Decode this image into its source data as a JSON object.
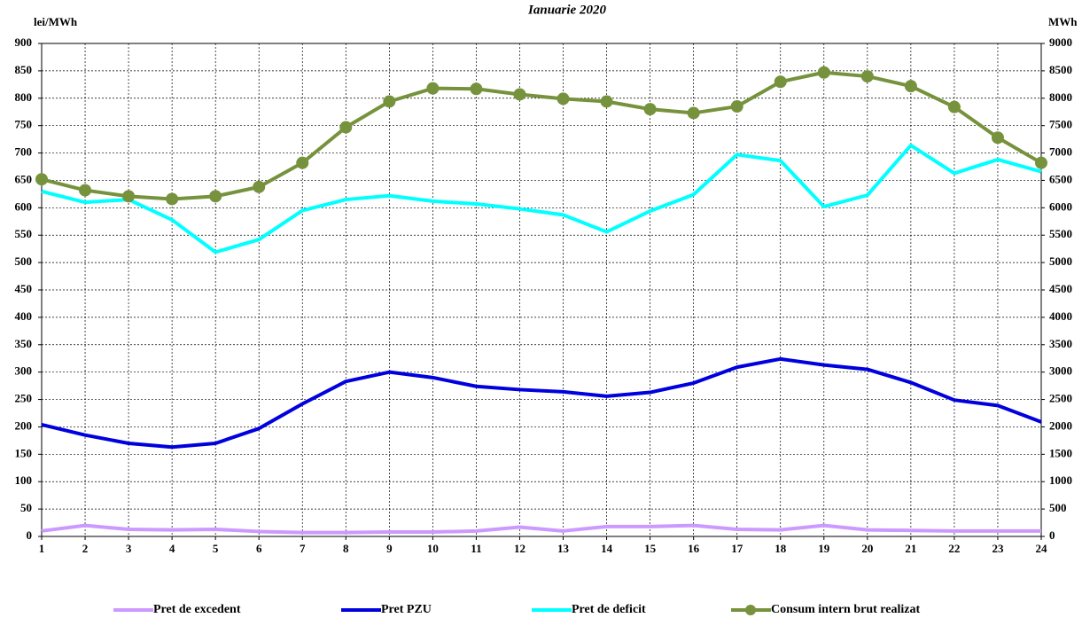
{
  "chart_data": {
    "type": "line",
    "title": "Ianuarie 2020",
    "y_label": "lei/MWh",
    "y2_label": "MWh",
    "x": [
      1,
      2,
      3,
      4,
      5,
      6,
      7,
      8,
      9,
      10,
      11,
      12,
      13,
      14,
      15,
      16,
      17,
      18,
      19,
      20,
      21,
      22,
      23,
      24
    ],
    "xlim": [
      1,
      24
    ],
    "xticks": [
      1,
      2,
      3,
      4,
      5,
      6,
      7,
      8,
      9,
      10,
      11,
      12,
      13,
      14,
      15,
      16,
      17,
      18,
      19,
      20,
      21,
      22,
      23,
      24
    ],
    "ylim": [
      0,
      900
    ],
    "yticks": [
      0,
      50,
      100,
      150,
      200,
      250,
      300,
      350,
      400,
      450,
      500,
      550,
      600,
      650,
      700,
      750,
      800,
      850,
      900
    ],
    "y2lim": [
      0,
      9000
    ],
    "y2ticks": [
      0,
      500,
      1000,
      1500,
      2000,
      2500,
      3000,
      3500,
      4000,
      4500,
      5000,
      5500,
      6000,
      6500,
      7000,
      7500,
      8000,
      8500,
      9000
    ],
    "grid": true,
    "legend": "bottom",
    "series": [
      {
        "name": "Pret de excedent",
        "color": "#cc99ff",
        "values": [
          10,
          20,
          13,
          12,
          13,
          9,
          7,
          7,
          8,
          8,
          10,
          17,
          10,
          18,
          18,
          20,
          13,
          12,
          20,
          12,
          11,
          10,
          10,
          10
        ]
      },
      {
        "name": "Pret PZU",
        "color": "#0000dd",
        "values": [
          204,
          185,
          170,
          163,
          170,
          197,
          242,
          283,
          300,
          290,
          274,
          268,
          264,
          256,
          263,
          280,
          309,
          324,
          313,
          305,
          281,
          249,
          239,
          209
        ]
      },
      {
        "name": "Pret de deficit",
        "color": "#00ffff",
        "values": [
          630,
          610,
          615,
          578,
          519,
          542,
          595,
          615,
          622,
          612,
          607,
          598,
          587,
          556,
          594,
          624,
          697,
          686,
          602,
          623,
          714,
          663,
          688,
          666
        ]
      },
      {
        "name": "Consum intern brut realizat",
        "color": "#76923c",
        "axis": "y2",
        "marker": true,
        "values": [
          6520,
          6320,
          6210,
          6160,
          6210,
          6380,
          6820,
          7470,
          7940,
          8180,
          8170,
          8070,
          7990,
          7940,
          7800,
          7730,
          7850,
          8300,
          8470,
          8400,
          8220,
          7840,
          7280,
          6820
        ]
      }
    ]
  }
}
